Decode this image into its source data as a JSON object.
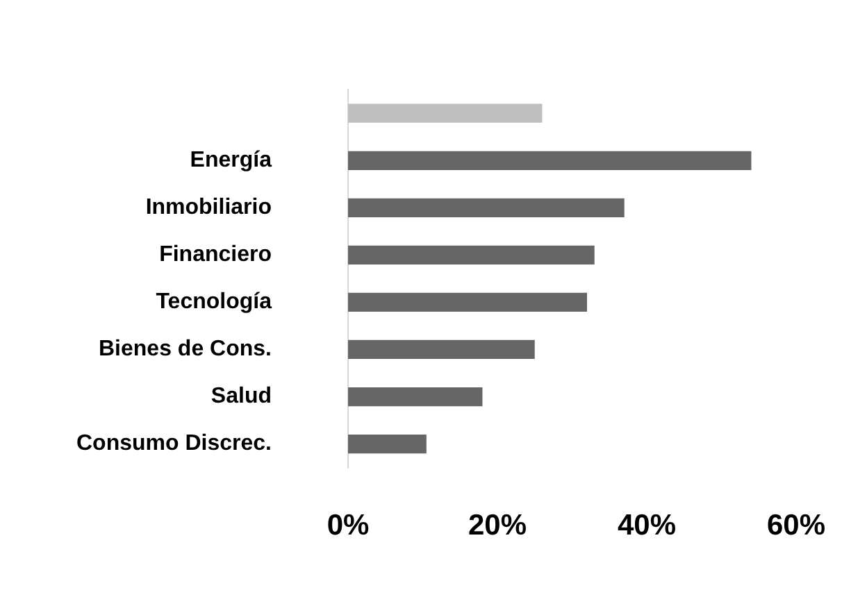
{
  "chart_data": {
    "type": "bar",
    "orientation": "horizontal",
    "categories": [
      null,
      "Energía",
      "Inmobiliario",
      "Financiero",
      "Tecnología",
      "Bienes de Cons.",
      "Salud",
      "Consumo Discrec."
    ],
    "values": [
      26,
      54,
      37,
      33,
      32,
      25,
      18,
      10.5
    ],
    "colors": [
      "#bfbfbf",
      "#666666",
      "#666666",
      "#666666",
      "#666666",
      "#666666",
      "#666666",
      "#666666"
    ],
    "xlim": [
      0,
      60
    ],
    "xticks": [
      {
        "value": 0,
        "label": "0%"
      },
      {
        "value": 20,
        "label": "20%"
      },
      {
        "value": 40,
        "label": "40%"
      },
      {
        "value": 60,
        "label": "60%"
      }
    ],
    "grid": false,
    "legend": false
  }
}
